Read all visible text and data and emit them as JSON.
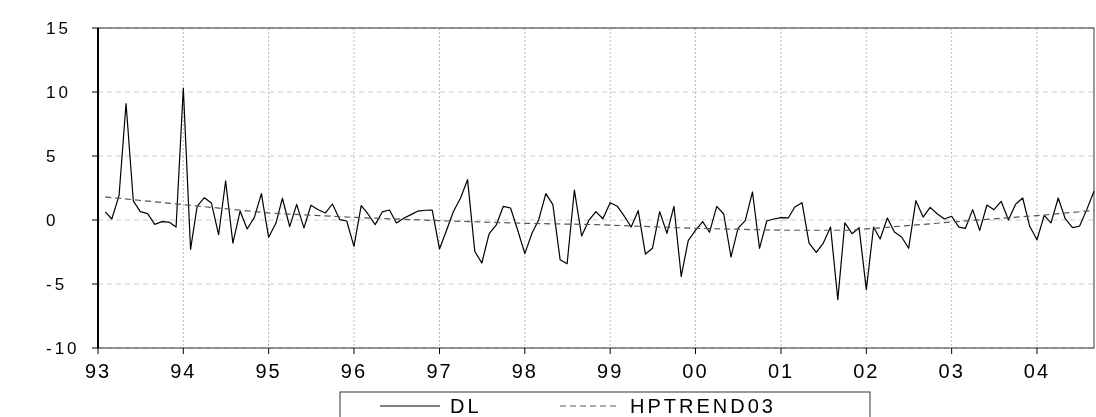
{
  "chart_data": {
    "type": "line",
    "x": [
      "1993-02",
      "1993-03",
      "1993-04",
      "1993-05",
      "1993-06",
      "1993-07",
      "1993-08",
      "1993-09",
      "1993-10",
      "1993-11",
      "1993-12",
      "1994-01",
      "1994-02",
      "1994-03",
      "1994-04",
      "1994-05",
      "1994-06",
      "1994-07",
      "1994-08",
      "1994-09",
      "1994-10",
      "1994-11",
      "1994-12",
      "1995-01",
      "1995-02",
      "1995-03",
      "1995-04",
      "1995-05",
      "1995-06",
      "1995-07",
      "1995-08",
      "1995-09",
      "1995-10",
      "1995-11",
      "1995-12",
      "1996-01",
      "1996-02",
      "1996-03",
      "1996-04",
      "1996-05",
      "1996-06",
      "1996-07",
      "1996-08",
      "1996-09",
      "1996-10",
      "1996-11",
      "1996-12",
      "1997-01",
      "1997-02",
      "1997-03",
      "1997-04",
      "1997-05",
      "1997-06",
      "1997-07",
      "1997-08",
      "1997-09",
      "1997-10",
      "1997-11",
      "1997-12",
      "1998-01",
      "1998-02",
      "1998-03",
      "1998-04",
      "1998-05",
      "1998-06",
      "1998-07",
      "1998-08",
      "1998-09",
      "1998-10",
      "1998-11",
      "1998-12",
      "1999-01",
      "1999-02",
      "1999-03",
      "1999-04",
      "1999-05",
      "1999-06",
      "1999-07",
      "1999-08",
      "1999-09",
      "1999-10",
      "1999-11",
      "1999-12",
      "2000-01",
      "2000-02",
      "2000-03",
      "2000-04",
      "2000-05",
      "2000-06",
      "2000-07",
      "2000-08",
      "2000-09",
      "2000-10",
      "2000-11",
      "2000-12",
      "2001-01",
      "2001-02",
      "2001-03",
      "2001-04",
      "2001-05",
      "2001-06",
      "2001-07",
      "2001-08",
      "2001-09",
      "2001-10",
      "2001-11",
      "2001-12",
      "2002-01",
      "2002-02",
      "2002-03",
      "2002-04",
      "2002-05",
      "2002-06",
      "2002-07",
      "2002-08",
      "2002-09",
      "2002-10",
      "2002-11",
      "2002-12",
      "2003-01",
      "2003-02",
      "2003-03",
      "2003-04",
      "2003-05",
      "2003-06",
      "2003-07",
      "2003-08",
      "2003-09",
      "2003-10",
      "2003-11",
      "2003-12",
      "2004-01",
      "2004-02",
      "2004-03",
      "2004-04",
      "2004-05",
      "2004-06",
      "2004-07",
      "2004-08",
      "2004-09"
    ],
    "series": [
      {
        "name": "DL",
        "color": "#000000",
        "line_style": "solid",
        "values": [
          0.63,
          0.08,
          1.9,
          9.1,
          1.5,
          0.65,
          0.5,
          -0.34,
          -0.13,
          -0.16,
          -0.55,
          10.3,
          -2.3,
          1.07,
          1.74,
          1.33,
          -1.15,
          3.05,
          -1.8,
          0.7,
          -0.7,
          0.2,
          2.06,
          -1.35,
          -0.26,
          1.7,
          -0.52,
          1.22,
          -0.62,
          1.15,
          0.8,
          0.55,
          1.25,
          0.03,
          -0.08,
          -2.06,
          1.12,
          0.47,
          -0.36,
          0.63,
          0.78,
          -0.23,
          0.13,
          0.42,
          0.7,
          0.76,
          0.78,
          -2.27,
          -0.76,
          0.65,
          1.72,
          3.15,
          -2.45,
          -3.36,
          -1.09,
          -0.39,
          1.07,
          0.94,
          -0.76,
          -2.63,
          -1.02,
          0.0,
          2.06,
          1.2,
          -3.1,
          -3.41,
          2.34,
          -1.25,
          -0.05,
          0.65,
          0.1,
          1.35,
          1.07,
          0.34,
          -0.55,
          0.73,
          -2.66,
          -2.21,
          0.65,
          -1.04,
          1.07,
          -4.4,
          -1.61,
          -0.81,
          -0.13,
          -0.96,
          1.07,
          0.47,
          -2.89,
          -0.65,
          -0.05,
          2.19,
          -2.21,
          -0.08,
          0.08,
          0.18,
          0.16,
          1.02,
          1.35,
          -1.8,
          -2.53,
          -1.8,
          -0.55,
          -6.22,
          -0.23,
          -1.07,
          -0.6,
          -5.44,
          -0.55,
          -1.48,
          0.16,
          -0.94,
          -1.33,
          -2.21,
          1.51,
          0.23,
          0.99,
          0.47,
          0.08,
          0.29,
          -0.55,
          -0.65,
          0.81,
          -0.81,
          1.17,
          0.81,
          1.46,
          0.0,
          1.22,
          1.72,
          -0.49,
          -1.54,
          0.36,
          -0.23,
          1.72,
          0.1,
          -0.6,
          -0.49,
          0.81,
          2.24
        ]
      },
      {
        "name": "HPTREND03",
        "color": "#555555",
        "line_style": "dashed",
        "x": [
          "1993-02",
          "1994-01",
          "1995-01",
          "1996-01",
          "1997-01",
          "1998-01",
          "1998-11",
          "2000-01",
          "2001-01",
          "2001-11",
          "2002-01",
          "2003-01",
          "2004-01",
          "2004-09"
        ],
        "values": [
          1.8,
          1.2,
          0.55,
          0.2,
          -0.05,
          -0.26,
          -0.36,
          -0.65,
          -0.8,
          -0.8,
          -0.7,
          -0.16,
          0.34,
          0.75
        ]
      }
    ],
    "xlim": [
      "1993-01",
      "2004-09"
    ],
    "xticks": [
      {
        "value": "1993",
        "label": "93"
      },
      {
        "value": "1994",
        "label": "94"
      },
      {
        "value": "1995",
        "label": "95"
      },
      {
        "value": "1996",
        "label": "96"
      },
      {
        "value": "1997",
        "label": "97"
      },
      {
        "value": "1998",
        "label": "98"
      },
      {
        "value": "1999",
        "label": "99"
      },
      {
        "value": "2000",
        "label": "00"
      },
      {
        "value": "2001",
        "label": "01"
      },
      {
        "value": "2002",
        "label": "02"
      },
      {
        "value": "2003",
        "label": "03"
      },
      {
        "value": "2004",
        "label": "04"
      }
    ],
    "ylim": [
      -10,
      15
    ],
    "yticks": [
      -10,
      -5,
      0,
      5,
      10,
      15
    ],
    "grid": true,
    "legend": "bottom"
  }
}
